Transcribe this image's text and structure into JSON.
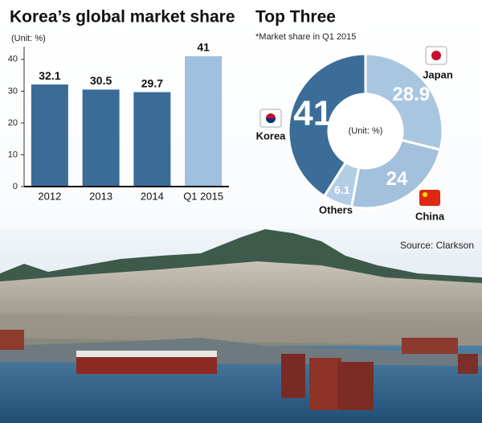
{
  "chart_data": [
    {
      "type": "bar",
      "title": "Korea’s global market share",
      "subtitle": "(Unit: %)",
      "categories": [
        "2012",
        "2013",
        "2014",
        "Q1 2015"
      ],
      "values": [
        32.1,
        30.5,
        29.7,
        41
      ],
      "colors": [
        "#3b6c98",
        "#3b6c98",
        "#3b6c98",
        "#9fc0de"
      ],
      "ylim": [
        0,
        44
      ],
      "yticks": [
        0,
        10,
        20,
        30,
        40
      ]
    },
    {
      "type": "pie",
      "title": "Top Three",
      "subtitle": "*Market share in Q1 2015",
      "center_label": "(Unit: %)",
      "categories": [
        "Japan",
        "China",
        "Others",
        "Korea"
      ],
      "values": [
        28.9,
        24,
        6.1,
        41
      ],
      "colors": [
        "#a9c6e1",
        "#a3c1dd",
        "#b3cde5",
        "#3c6d99"
      ],
      "source": "Source: Clarkson"
    }
  ]
}
